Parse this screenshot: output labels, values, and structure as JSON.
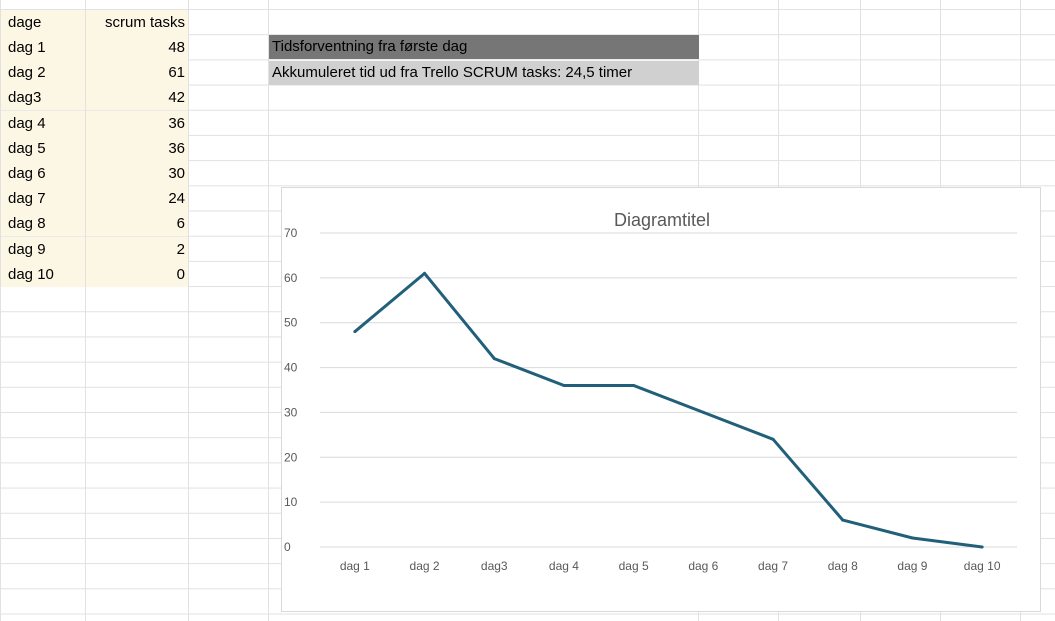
{
  "sheet": {
    "header": {
      "col_a": "dage",
      "col_b": "scrum tasks"
    },
    "rows": [
      {
        "label": "dag 1",
        "value": "48"
      },
      {
        "label": "dag 2",
        "value": "61"
      },
      {
        "label": "dag3",
        "value": "42"
      },
      {
        "label": "dag 4",
        "value": "36"
      },
      {
        "label": "dag 5",
        "value": "36"
      },
      {
        "label": "dag 6",
        "value": "30"
      },
      {
        "label": "dag 7",
        "value": "24"
      },
      {
        "label": "dag 8",
        "value": "6"
      },
      {
        "label": "dag 9",
        "value": "2"
      },
      {
        "label": "dag 10",
        "value": "0"
      }
    ],
    "banner_1": "Tidsforventning fra første dag",
    "banner_2": "Akkumuleret tid ud fra Trello SCRUM tasks: 24,5 timer"
  },
  "colors": {
    "line": "#215f7a",
    "header_fill": "#fcf6e4",
    "banner_dark": "#767676",
    "banner_light": "#d0d0d0",
    "gridline": "#d9d9d9"
  },
  "chart_data": {
    "type": "line",
    "title": "Diagramtitel",
    "categories": [
      "dag 1",
      "dag 2",
      "dag3",
      "dag 4",
      "dag 5",
      "dag 6",
      "dag 7",
      "dag 8",
      "dag 9",
      "dag 10"
    ],
    "series": [
      {
        "values": [
          48,
          61,
          42,
          36,
          36,
          30,
          24,
          6,
          2,
          0
        ]
      }
    ],
    "yticks": [
      0,
      10,
      20,
      30,
      40,
      50,
      60,
      70
    ],
    "ylim": [
      0,
      70
    ],
    "grid": true,
    "legend": "none"
  }
}
